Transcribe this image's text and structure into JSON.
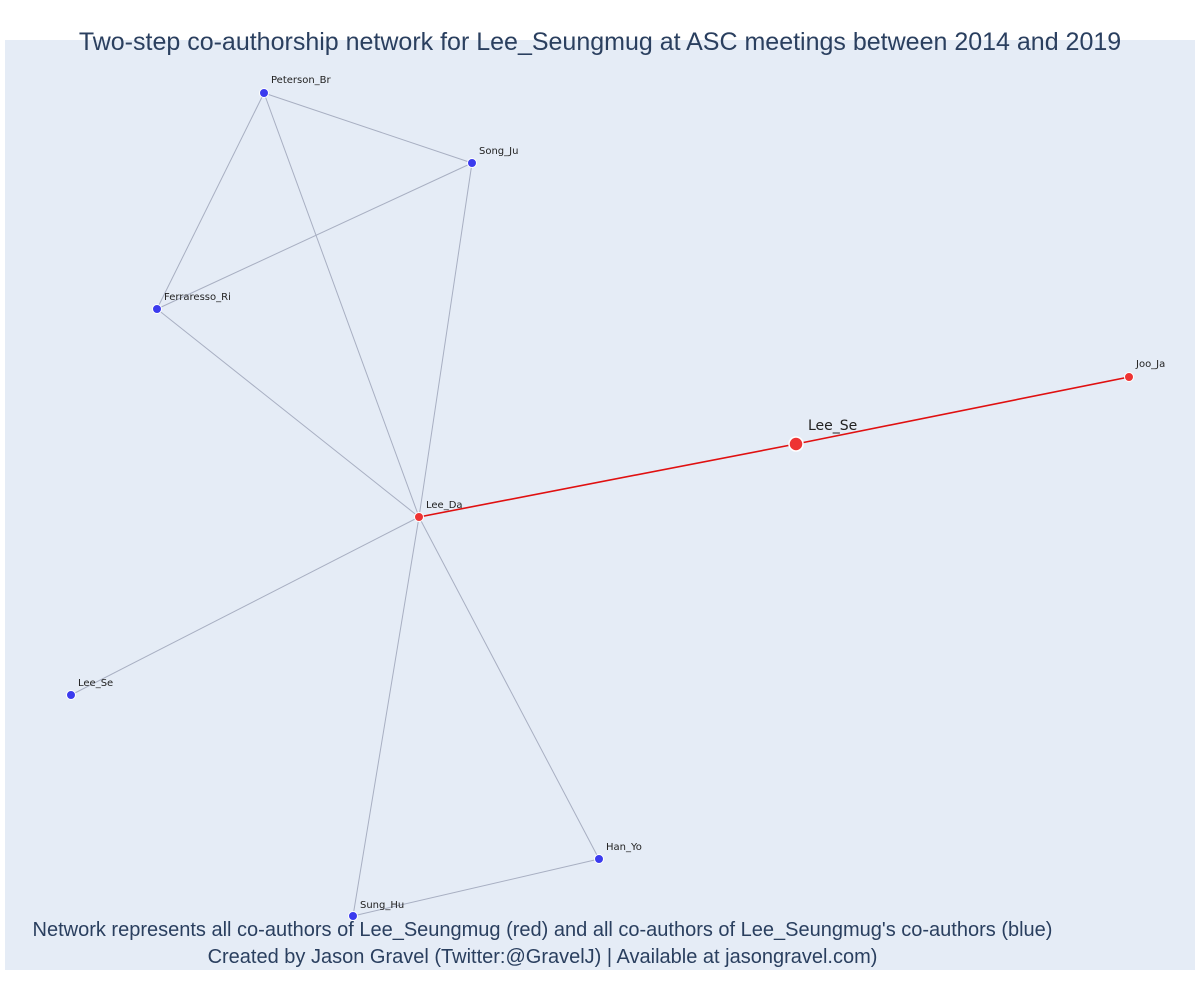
{
  "title": "Two-step co-authorship network for Lee_Seungmug at ASC meetings between 2014 and 2019",
  "footer": {
    "line1": "Network represents all co-authors of Lee_Seungmug (red) and all co-authors of Lee_Seungmug's co-authors (blue)",
    "line2": "Created by Jason Gravel (Twitter:@GravelJ) | Available at jasongravel.com)"
  },
  "colors": {
    "background": "#e5ecf6",
    "coauthor": "#ee3333",
    "second_step": "#3b3bee",
    "edge_default": "#a8afc2",
    "edge_focal": "#e01010",
    "text": "#2a3f5f"
  },
  "nodes": [
    {
      "id": "lee_se_focal",
      "label": "Lee_Se",
      "group": "focal"
    },
    {
      "id": "joo_ja",
      "label": "Joo_Ja",
      "group": "coauthor"
    },
    {
      "id": "lee_da",
      "label": "Lee_Da",
      "group": "coauthor"
    },
    {
      "id": "peterson_br",
      "label": "Peterson_Br",
      "group": "second_step"
    },
    {
      "id": "song_ju",
      "label": "Song_Ju",
      "group": "second_step"
    },
    {
      "id": "ferraresso_ri",
      "label": "Ferraresso_Ri",
      "group": "second_step"
    },
    {
      "id": "lee_se_2",
      "label": "Lee_Se",
      "group": "second_step"
    },
    {
      "id": "sung_hu",
      "label": "Sung_Hu",
      "group": "second_step"
    },
    {
      "id": "han_yo",
      "label": "Han_Yo",
      "group": "second_step"
    }
  ],
  "edges": [
    {
      "source": "lee_se_focal",
      "target": "joo_ja",
      "focal": true
    },
    {
      "source": "lee_se_focal",
      "target": "lee_da",
      "focal": true
    },
    {
      "source": "peterson_br",
      "target": "song_ju",
      "focal": false
    },
    {
      "source": "peterson_br",
      "target": "ferraresso_ri",
      "focal": false
    },
    {
      "source": "peterson_br",
      "target": "lee_da",
      "focal": false
    },
    {
      "source": "song_ju",
      "target": "ferraresso_ri",
      "focal": false
    },
    {
      "source": "song_ju",
      "target": "lee_da",
      "focal": false
    },
    {
      "source": "ferraresso_ri",
      "target": "lee_da",
      "focal": false
    },
    {
      "source": "lee_se_2",
      "target": "lee_da",
      "focal": false
    },
    {
      "source": "sung_hu",
      "target": "lee_da",
      "focal": false
    },
    {
      "source": "han_yo",
      "target": "lee_da",
      "focal": false
    },
    {
      "source": "sung_hu",
      "target": "han_yo",
      "focal": false
    }
  ]
}
